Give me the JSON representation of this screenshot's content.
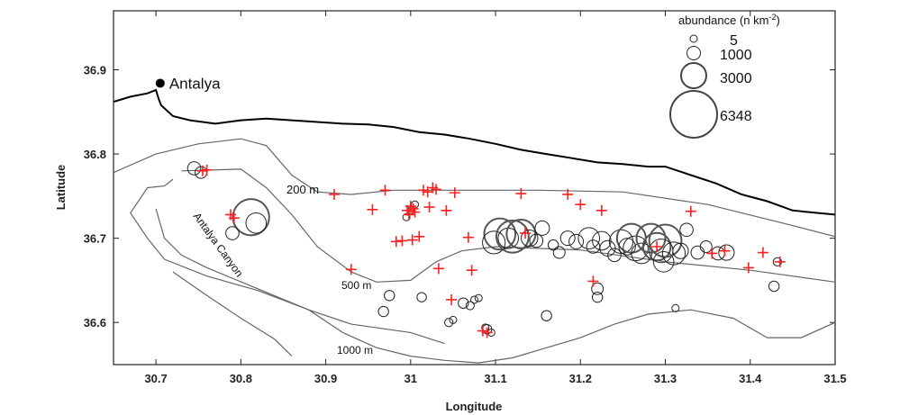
{
  "chart_data": {
    "type": "map",
    "xlabel": "Longitude",
    "ylabel": "Latitude",
    "xlim": [
      30.65,
      31.5
    ],
    "ylim": [
      36.55,
      36.97
    ],
    "xticks": [
      30.7,
      30.8,
      30.9,
      31,
      31.1,
      31.2,
      31.3,
      31.4,
      31.5
    ],
    "xtick_labels": [
      "30.7",
      "30.8",
      "30.9",
      "31",
      "31.1",
      "31.2",
      "31.3",
      "31.4",
      "31.5"
    ],
    "yticks": [
      36.6,
      36.7,
      36.8,
      36.9
    ],
    "ytick_labels": [
      "36.6",
      "36.7",
      "36.8",
      "36.9"
    ],
    "city": {
      "name": "Antalya",
      "lon": 30.705,
      "lat": 36.884
    },
    "canyon_label": "Antalya Canyon",
    "contour_labels": [
      "200 m",
      "500 m",
      "1000 m"
    ],
    "colors": {
      "coast": "#000000",
      "contour": "#666666",
      "station": "#ff2020",
      "circle": "#222222"
    },
    "coastline": [
      [
        30.65,
        36.862
      ],
      [
        30.67,
        36.868
      ],
      [
        30.69,
        36.872
      ],
      [
        30.7,
        36.876
      ],
      [
        30.703,
        36.866
      ],
      [
        30.706,
        36.858
      ],
      [
        30.72,
        36.845
      ],
      [
        30.74,
        36.84
      ],
      [
        30.77,
        36.836
      ],
      [
        30.8,
        36.84
      ],
      [
        30.83,
        36.842
      ],
      [
        30.86,
        36.84
      ],
      [
        30.89,
        36.838
      ],
      [
        30.92,
        36.836
      ],
      [
        30.95,
        36.835
      ],
      [
        30.98,
        36.832
      ],
      [
        31.01,
        36.826
      ],
      [
        31.04,
        36.823
      ],
      [
        31.07,
        36.818
      ],
      [
        31.1,
        36.812
      ],
      [
        31.13,
        36.805
      ],
      [
        31.16,
        36.8
      ],
      [
        31.19,
        36.795
      ],
      [
        31.22,
        36.79
      ],
      [
        31.25,
        36.788
      ],
      [
        31.28,
        36.785
      ],
      [
        31.3,
        36.785
      ],
      [
        31.33,
        36.775
      ],
      [
        31.36,
        36.765
      ],
      [
        31.39,
        36.752
      ],
      [
        31.42,
        36.744
      ],
      [
        31.45,
        36.733
      ],
      [
        31.48,
        36.73
      ],
      [
        31.5,
        36.728
      ]
    ],
    "contour_200": [
      [
        30.65,
        36.778
      ],
      [
        30.7,
        36.8
      ],
      [
        30.75,
        36.812
      ],
      [
        30.8,
        36.818
      ],
      [
        30.83,
        36.81
      ],
      [
        30.86,
        36.775
      ],
      [
        30.89,
        36.755
      ],
      [
        30.93,
        36.752
      ],
      [
        30.98,
        36.757
      ],
      [
        31.05,
        36.757
      ],
      [
        31.15,
        36.757
      ],
      [
        31.25,
        36.755
      ],
      [
        31.35,
        36.74
      ],
      [
        31.45,
        36.715
      ],
      [
        31.5,
        36.702
      ]
    ],
    "contour_500": [
      [
        30.73,
        36.78
      ],
      [
        30.8,
        36.782
      ],
      [
        30.83,
        36.76
      ],
      [
        30.86,
        36.728
      ],
      [
        30.89,
        36.69
      ],
      [
        30.93,
        36.66
      ],
      [
        30.96,
        36.648
      ],
      [
        31.0,
        36.65
      ],
      [
        31.03,
        36.672
      ],
      [
        31.06,
        36.685
      ],
      [
        31.1,
        36.69
      ],
      [
        31.2,
        36.686
      ],
      [
        31.3,
        36.672
      ],
      [
        31.4,
        36.662
      ],
      [
        31.5,
        36.648
      ]
    ],
    "contour_1000": [
      [
        30.72,
        36.77
      ],
      [
        30.71,
        36.762
      ],
      [
        30.69,
        36.76
      ],
      [
        30.67,
        36.73
      ],
      [
        30.69,
        36.7
      ],
      [
        30.71,
        36.675
      ],
      [
        30.76,
        36.655
      ],
      [
        30.82,
        36.638
      ],
      [
        30.88,
        36.615
      ],
      [
        30.92,
        36.588
      ],
      [
        30.96,
        36.57
      ],
      [
        31.0,
        36.56
      ],
      [
        31.04,
        36.555
      ],
      [
        31.08,
        36.552
      ],
      [
        31.12,
        36.558
      ],
      [
        31.16,
        36.57
      ],
      [
        31.2,
        36.582
      ],
      [
        31.24,
        36.598
      ],
      [
        31.28,
        36.61
      ],
      [
        31.33,
        36.615
      ],
      [
        31.38,
        36.605
      ],
      [
        31.42,
        36.582
      ],
      [
        31.46,
        36.582
      ],
      [
        31.5,
        36.6
      ]
    ],
    "contour_deep": [
      [
        30.7,
        36.735
      ],
      [
        30.71,
        36.7
      ],
      [
        30.73,
        36.68
      ],
      [
        30.76,
        36.665
      ],
      [
        30.82,
        36.64
      ],
      [
        30.88,
        36.615
      ],
      [
        30.93,
        36.598
      ],
      [
        31.0,
        36.588
      ],
      [
        31.04,
        36.575
      ]
    ],
    "contour_deep2": [
      [
        30.72,
        36.66
      ],
      [
        30.76,
        36.632
      ],
      [
        30.8,
        36.605
      ],
      [
        30.84,
        36.58
      ],
      [
        30.86,
        36.56
      ]
    ],
    "legend": {
      "title": "abundance (n km",
      "title_sup": "-2",
      "title_end": ")",
      "items": [
        {
          "label": "5",
          "value": 5
        },
        {
          "label": "1000",
          "value": 1000
        },
        {
          "label": "3000",
          "value": 3000
        },
        {
          "label": "6348",
          "value": 6348
        }
      ]
    },
    "stations": [
      [
        30.755,
        36.78
      ],
      [
        30.76,
        36.781
      ],
      [
        30.788,
        36.728
      ],
      [
        30.792,
        36.724
      ],
      [
        30.91,
        36.752
      ],
      [
        30.93,
        36.663
      ],
      [
        30.955,
        36.734
      ],
      [
        30.97,
        36.757
      ],
      [
        30.983,
        36.696
      ],
      [
        30.99,
        36.697
      ],
      [
        30.996,
        36.733
      ],
      [
        30.998,
        36.728
      ],
      [
        31.0,
        36.738
      ],
      [
        31.003,
        36.735
      ],
      [
        31.002,
        36.698
      ],
      [
        31.005,
        36.731
      ],
      [
        31.01,
        36.702
      ],
      [
        31.015,
        36.757
      ],
      [
        31.02,
        36.755
      ],
      [
        31.026,
        36.76
      ],
      [
        31.03,
        36.758
      ],
      [
        31.022,
        36.737
      ],
      [
        31.033,
        36.664
      ],
      [
        31.042,
        36.733
      ],
      [
        31.048,
        36.627
      ],
      [
        31.052,
        36.754
      ],
      [
        31.068,
        36.701
      ],
      [
        31.072,
        36.662
      ],
      [
        31.085,
        36.59
      ],
      [
        31.09,
        36.588
      ],
      [
        31.13,
        36.753
      ],
      [
        31.135,
        36.706
      ],
      [
        31.185,
        36.752
      ],
      [
        31.2,
        36.74
      ],
      [
        31.215,
        36.649
      ],
      [
        31.225,
        36.733
      ],
      [
        31.29,
        36.69
      ],
      [
        31.33,
        36.732
      ],
      [
        31.355,
        36.682
      ],
      [
        31.37,
        36.685
      ],
      [
        31.398,
        36.665
      ],
      [
        31.415,
        36.683
      ],
      [
        31.435,
        36.672
      ]
    ],
    "abundance": [
      [
        30.745,
        36.783,
        500
      ],
      [
        30.753,
        36.778,
        400
      ],
      [
        30.812,
        36.725,
        3800
      ],
      [
        30.818,
        36.718,
        1200
      ],
      [
        30.79,
        36.706,
        500
      ],
      [
        31.0,
        36.733,
        150
      ],
      [
        31.005,
        36.74,
        80
      ],
      [
        30.995,
        36.725,
        60
      ],
      [
        30.975,
        36.632,
        300
      ],
      [
        30.968,
        36.613,
        300
      ],
      [
        31.013,
        36.63,
        250
      ],
      [
        31.045,
        36.6,
        200
      ],
      [
        31.05,
        36.603,
        80
      ],
      [
        31.062,
        36.623,
        300
      ],
      [
        31.07,
        36.62,
        200
      ],
      [
        31.075,
        36.627,
        100
      ],
      [
        31.08,
        36.629,
        150
      ],
      [
        31.09,
        36.592,
        250
      ],
      [
        31.095,
        36.588,
        120
      ],
      [
        31.088,
        36.594,
        100
      ],
      [
        31.105,
        36.705,
        2800
      ],
      [
        31.098,
        36.695,
        1500
      ],
      [
        31.115,
        36.7,
        1200
      ],
      [
        31.12,
        36.702,
        3000
      ],
      [
        31.13,
        36.705,
        2400
      ],
      [
        31.14,
        36.7,
        800
      ],
      [
        31.155,
        36.712,
        600
      ],
      [
        31.16,
        36.608,
        300
      ],
      [
        31.175,
        36.683,
        400
      ],
      [
        31.185,
        36.7,
        600
      ],
      [
        31.195,
        36.696,
        600
      ],
      [
        31.21,
        36.7,
        1300
      ],
      [
        31.215,
        36.69,
        500
      ],
      [
        31.22,
        36.64,
        400
      ],
      [
        31.22,
        36.63,
        300
      ],
      [
        31.225,
        36.697,
        1000
      ],
      [
        31.232,
        36.688,
        700
      ],
      [
        31.248,
        36.696,
        1600
      ],
      [
        31.26,
        36.7,
        2400
      ],
      [
        31.265,
        36.688,
        1800
      ],
      [
        31.272,
        36.682,
        1200
      ],
      [
        31.283,
        36.7,
        2400
      ],
      [
        31.29,
        36.69,
        2200
      ],
      [
        31.295,
        36.685,
        1600
      ],
      [
        31.298,
        36.672,
        1200
      ],
      [
        31.3,
        36.697,
        3000
      ],
      [
        31.31,
        36.682,
        1500
      ],
      [
        31.318,
        36.685,
        700
      ],
      [
        31.325,
        36.71,
        500
      ],
      [
        31.338,
        36.683,
        500
      ],
      [
        31.348,
        36.69,
        400
      ],
      [
        31.362,
        36.682,
        500
      ],
      [
        31.372,
        36.683,
        700
      ],
      [
        31.428,
        36.643,
        300
      ],
      [
        31.432,
        36.672,
        200
      ],
      [
        31.312,
        36.617,
        100
      ],
      [
        31.255,
        36.69,
        800
      ],
      [
        31.24,
        36.68,
        500
      ],
      [
        31.168,
        36.692,
        300
      ],
      [
        31.148,
        36.697,
        500
      ]
    ]
  }
}
